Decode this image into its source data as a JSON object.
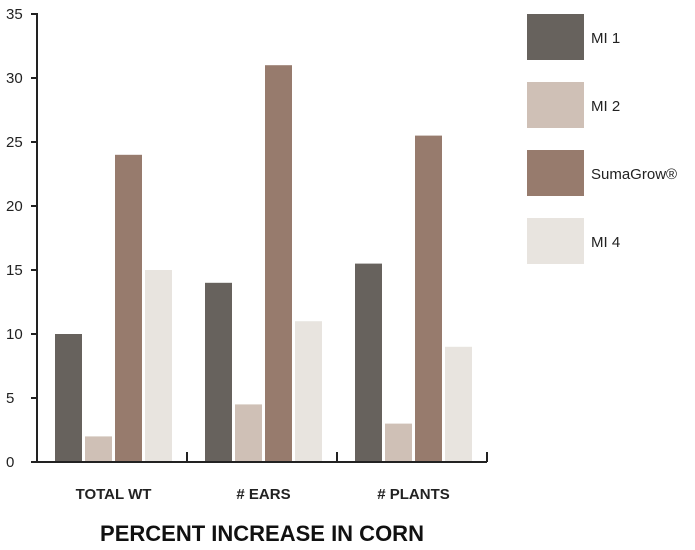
{
  "chart_data": {
    "type": "bar",
    "title": "PERCENT INCREASE IN CORN",
    "categories": [
      "TOTAL WT",
      "# EARS",
      "# PLANTS"
    ],
    "series": [
      {
        "name": "MI 1",
        "color": "#67625d",
        "values": [
          10,
          14,
          15.5
        ]
      },
      {
        "name": "MI 2",
        "color": "#cfc0b6",
        "values": [
          2,
          4.5,
          3
        ]
      },
      {
        "name": "SumaGrow®",
        "color": "#977b6d",
        "values": [
          24,
          31,
          25.5
        ]
      },
      {
        "name": "MI 4",
        "color": "#e8e4df",
        "values": [
          15,
          11,
          9
        ]
      }
    ],
    "yticks": [
      "0",
      "5",
      "10",
      "15",
      "20",
      "25",
      "30",
      "35"
    ],
    "ylim": [
      0,
      35
    ],
    "grid": false,
    "legend": "right"
  }
}
